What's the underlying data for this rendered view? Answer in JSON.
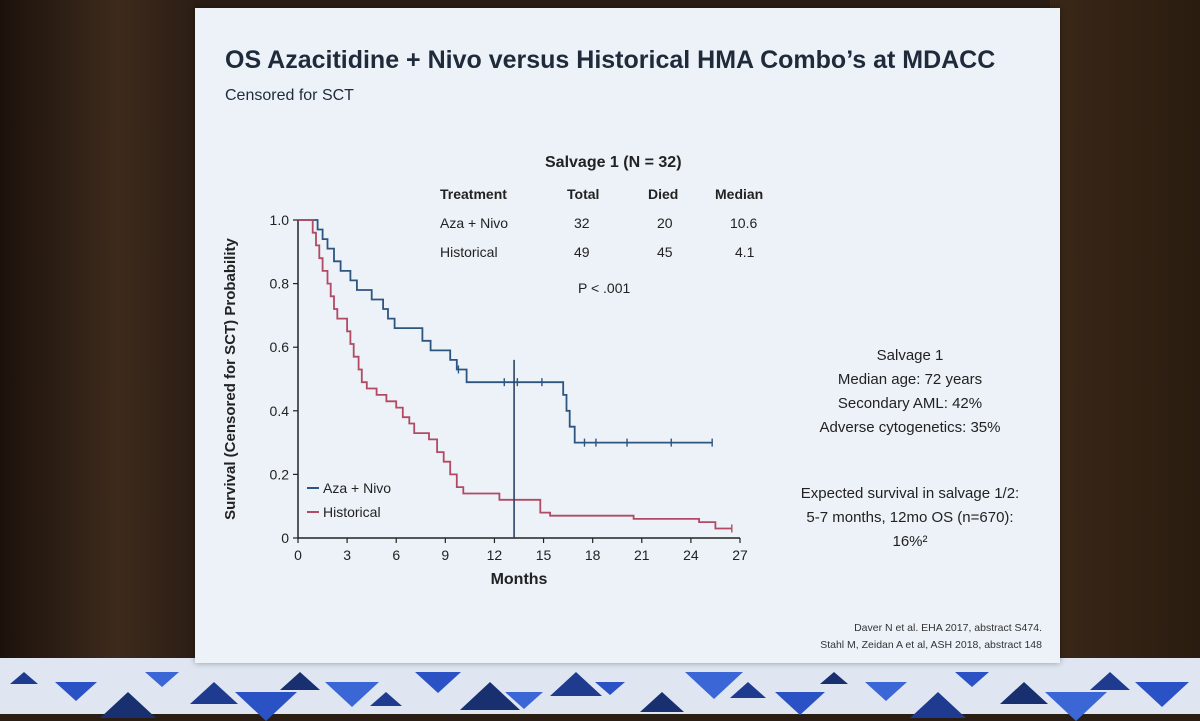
{
  "slide": {
    "title": "OS Azacitidine + Nivo versus Historical HMA Combo’s at MDACC",
    "subtitle": "Censored for SCT"
  },
  "table": {
    "title": "Salvage 1 (N = 32)",
    "headers": [
      "Treatment",
      "Total",
      "Died",
      "Median"
    ],
    "rows": [
      [
        "Aza + Nivo",
        "32",
        "20",
        "10.6"
      ],
      [
        "Historical",
        "49",
        "45",
        "4.1"
      ]
    ],
    "p_value": "P < .001"
  },
  "info": {
    "lines": [
      "Salvage 1",
      "Median age: 72 years",
      "Secondary AML: 42%",
      "Adverse cytogenetics: 35%"
    ],
    "expected": [
      "Expected survival in salvage 1/2:",
      "5-7 months, 12mo OS (n=670):",
      "16%²"
    ]
  },
  "references": [
    "Daver N et al. EHA 2017, abstract S474.",
    "Stahl M, Zeidan A et al, ASH 2018, abstract 148"
  ],
  "chart_data": {
    "type": "line",
    "xlabel": "Months",
    "ylabel": "Survival (Censored for SCT) Probability",
    "xlim": [
      0,
      27
    ],
    "ylim": [
      0,
      1.0
    ],
    "xticks": [
      0,
      3,
      6,
      9,
      12,
      15,
      18,
      21,
      24,
      27
    ],
    "yticks": [
      0,
      0.2,
      0.4,
      0.6,
      0.8,
      1.0
    ],
    "ytick_labels": [
      "0",
      "0.2",
      "0.4",
      "0.6",
      "0.8",
      "1.0"
    ],
    "grid": false,
    "legend_position": "bottom-left",
    "vertical_line_x": 13.2,
    "series": [
      {
        "name": "Aza + Nivo",
        "color": "#2c5580",
        "steps": [
          [
            0,
            1.0
          ],
          [
            1.2,
            1.0
          ],
          [
            1.2,
            0.97
          ],
          [
            1.5,
            0.97
          ],
          [
            1.5,
            0.94
          ],
          [
            1.8,
            0.94
          ],
          [
            1.8,
            0.91
          ],
          [
            2.2,
            0.91
          ],
          [
            2.2,
            0.87
          ],
          [
            2.6,
            0.87
          ],
          [
            2.6,
            0.84
          ],
          [
            3.2,
            0.84
          ],
          [
            3.2,
            0.81
          ],
          [
            3.6,
            0.81
          ],
          [
            3.6,
            0.78
          ],
          [
            4.5,
            0.78
          ],
          [
            4.5,
            0.75
          ],
          [
            5.2,
            0.75
          ],
          [
            5.2,
            0.72
          ],
          [
            5.5,
            0.72
          ],
          [
            5.5,
            0.69
          ],
          [
            5.9,
            0.69
          ],
          [
            5.9,
            0.66
          ],
          [
            7.6,
            0.66
          ],
          [
            7.6,
            0.62
          ],
          [
            8.1,
            0.62
          ],
          [
            8.1,
            0.59
          ],
          [
            9.3,
            0.59
          ],
          [
            9.3,
            0.56
          ],
          [
            9.7,
            0.56
          ],
          [
            9.7,
            0.53
          ],
          [
            10.3,
            0.53
          ],
          [
            10.3,
            0.49
          ],
          [
            16.2,
            0.49
          ],
          [
            16.2,
            0.45
          ],
          [
            16.4,
            0.45
          ],
          [
            16.4,
            0.4
          ],
          [
            16.6,
            0.4
          ],
          [
            16.6,
            0.35
          ],
          [
            16.9,
            0.35
          ],
          [
            16.9,
            0.3
          ],
          [
            25.3,
            0.3
          ]
        ],
        "censored": [
          [
            9.8,
            0.53
          ],
          [
            12.6,
            0.49
          ],
          [
            13.4,
            0.49
          ],
          [
            14.9,
            0.49
          ],
          [
            17.5,
            0.3
          ],
          [
            18.2,
            0.3
          ],
          [
            20.1,
            0.3
          ],
          [
            22.8,
            0.3
          ],
          [
            25.3,
            0.3
          ]
        ]
      },
      {
        "name": "Historical",
        "color": "#b14a62",
        "steps": [
          [
            0,
            1.0
          ],
          [
            0.9,
            1.0
          ],
          [
            0.9,
            0.96
          ],
          [
            1.1,
            0.96
          ],
          [
            1.1,
            0.92
          ],
          [
            1.3,
            0.92
          ],
          [
            1.3,
            0.88
          ],
          [
            1.5,
            0.88
          ],
          [
            1.5,
            0.84
          ],
          [
            1.8,
            0.84
          ],
          [
            1.8,
            0.8
          ],
          [
            2.0,
            0.8
          ],
          [
            2.0,
            0.76
          ],
          [
            2.2,
            0.76
          ],
          [
            2.2,
            0.72
          ],
          [
            2.4,
            0.72
          ],
          [
            2.4,
            0.69
          ],
          [
            3.0,
            0.69
          ],
          [
            3.0,
            0.65
          ],
          [
            3.2,
            0.65
          ],
          [
            3.2,
            0.61
          ],
          [
            3.4,
            0.61
          ],
          [
            3.4,
            0.57
          ],
          [
            3.7,
            0.57
          ],
          [
            3.7,
            0.53
          ],
          [
            3.9,
            0.53
          ],
          [
            3.9,
            0.49
          ],
          [
            4.2,
            0.49
          ],
          [
            4.2,
            0.47
          ],
          [
            4.8,
            0.47
          ],
          [
            4.8,
            0.45
          ],
          [
            5.4,
            0.45
          ],
          [
            5.4,
            0.43
          ],
          [
            6.0,
            0.43
          ],
          [
            6.0,
            0.41
          ],
          [
            6.4,
            0.41
          ],
          [
            6.4,
            0.38
          ],
          [
            6.8,
            0.38
          ],
          [
            6.8,
            0.36
          ],
          [
            7.1,
            0.36
          ],
          [
            7.1,
            0.33
          ],
          [
            8.0,
            0.33
          ],
          [
            8.0,
            0.31
          ],
          [
            8.5,
            0.31
          ],
          [
            8.5,
            0.27
          ],
          [
            8.9,
            0.27
          ],
          [
            8.9,
            0.24
          ],
          [
            9.3,
            0.24
          ],
          [
            9.3,
            0.2
          ],
          [
            9.7,
            0.2
          ],
          [
            9.7,
            0.16
          ],
          [
            10.1,
            0.16
          ],
          [
            10.1,
            0.14
          ],
          [
            12.3,
            0.14
          ],
          [
            12.3,
            0.12
          ],
          [
            14.8,
            0.12
          ],
          [
            14.8,
            0.08
          ],
          [
            15.4,
            0.08
          ],
          [
            15.4,
            0.07
          ],
          [
            20.5,
            0.07
          ],
          [
            20.5,
            0.06
          ],
          [
            24.5,
            0.06
          ],
          [
            24.5,
            0.05
          ],
          [
            25.5,
            0.05
          ],
          [
            25.5,
            0.03
          ],
          [
            26.5,
            0.03
          ]
        ],
        "censored": [
          [
            26.5,
            0.03
          ]
        ]
      }
    ]
  }
}
